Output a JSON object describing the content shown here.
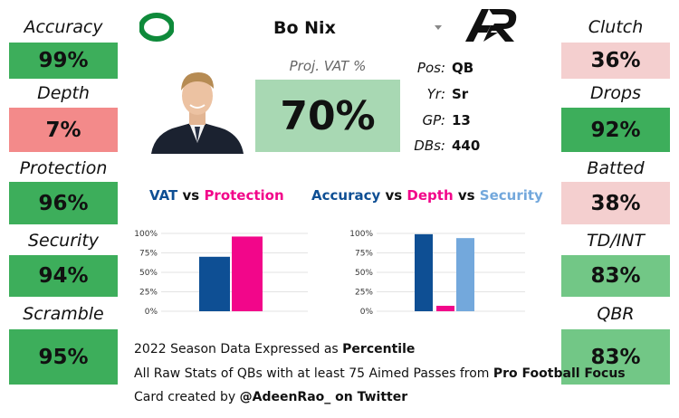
{
  "player": {
    "name": "Bo Nix",
    "dropdown_icon": "caret-down-icon"
  },
  "logos": {
    "team": "oregon-o-logo",
    "brand": "ar-logo"
  },
  "vat": {
    "label": "Proj. VAT %",
    "value": "70%"
  },
  "info": [
    {
      "key": "Pos:",
      "value": "QB"
    },
    {
      "key": "Yr:",
      "value": "Sr"
    },
    {
      "key": "GP:",
      "value": "13"
    },
    {
      "key": "DBs:",
      "value": "440"
    }
  ],
  "left_stats": [
    {
      "label": "Accuracy",
      "value": "99%",
      "color": "#3dae5b"
    },
    {
      "label": "Depth",
      "value": "7%",
      "color": "#f38a8a"
    },
    {
      "label": "Protection",
      "value": "96%",
      "color": "#3dae5b"
    },
    {
      "label": "Security",
      "value": "94%",
      "color": "#3dae5b"
    },
    {
      "label": "Scramble",
      "value": "95%",
      "color": "#3dae5b"
    }
  ],
  "right_stats": [
    {
      "label": "Clutch",
      "value": "36%",
      "color": "#f4cfcf"
    },
    {
      "label": "Drops",
      "value": "92%",
      "color": "#3dae5b"
    },
    {
      "label": "Batted",
      "value": "38%",
      "color": "#f4cfcf"
    },
    {
      "label": "TD/INT",
      "value": "83%",
      "color": "#72c786"
    },
    {
      "label": "QBR",
      "value": "83%",
      "color": "#72c786"
    }
  ],
  "chart_titles": {
    "left": {
      "a": "VAT",
      "vs1": " vs ",
      "b": "Protection"
    },
    "right": {
      "a": "Accuracy",
      "vs1": " vs ",
      "b": "Depth",
      "vs2": " vs ",
      "c": "Security"
    }
  },
  "chart_data": [
    {
      "type": "bar",
      "categories": [
        "VAT",
        "Protection"
      ],
      "values": [
        70,
        96
      ],
      "colors": [
        "#0e4f94",
        "#f2068a"
      ],
      "ylim": [
        0,
        100
      ],
      "yticks": [
        "0%",
        "25%",
        "50%",
        "75%",
        "100%"
      ]
    },
    {
      "type": "bar",
      "categories": [
        "Accuracy",
        "Depth",
        "Security"
      ],
      "values": [
        99,
        7,
        94
      ],
      "colors": [
        "#0e4f94",
        "#f2068a",
        "#73a8dc"
      ],
      "ylim": [
        0,
        100
      ],
      "yticks": [
        "0%",
        "25%",
        "50%",
        "75%",
        "100%"
      ]
    }
  ],
  "footer": {
    "line1_pre": "2022 Season Data Expressed as ",
    "line1_bold": "Percentile",
    "line2_pre": "All Raw Stats of QBs with at least 75 Aimed Passes from ",
    "line2_bold": "Pro Football Focus",
    "line3_pre": "Card created by ",
    "line3_bold": "@AdeenRao_ on Twitter"
  }
}
